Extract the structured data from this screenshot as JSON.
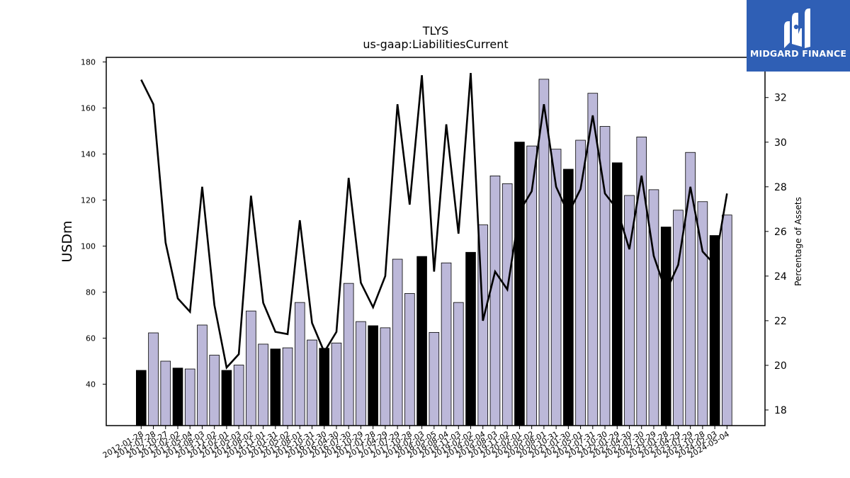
{
  "colors": {
    "bar_default": "#bcb8d9",
    "bar_highlight": "#000000",
    "line": "#000000",
    "logo_bg": "#2f5fb5"
  },
  "logo": {
    "text": "MIDGARD FINANCE",
    "icon": "midgard-logo-icon"
  },
  "chart_data": {
    "type": "bar",
    "title": "TLYS",
    "subtitle": "us-gaap:LiabilitiesCurrent",
    "ylabel": "USDm",
    "y2label": "Percentage of Assets",
    "ylim": [
      22,
      182
    ],
    "y2lim": [
      17.3,
      33.8
    ],
    "yticks": [
      40,
      60,
      80,
      100,
      120,
      140,
      160,
      180
    ],
    "y2ticks": [
      18,
      20,
      22,
      24,
      26,
      28,
      30,
      32
    ],
    "categories": [
      "2012-01-28",
      "2012-07-28",
      "2012-10-27",
      "2013-02-02",
      "2013-05-04",
      "2013-08-03",
      "2013-11-02",
      "2014-02-01",
      "2014-05-03",
      "2014-08-02",
      "2014-11-01",
      "2015-01-31",
      "2015-05-02",
      "2015-08-01",
      "2015-10-31",
      "2016-01-30",
      "2016-04-30",
      "2016-07-30",
      "2016-10-29",
      "2017-01-28",
      "2017-04-29",
      "2017-07-29",
      "2017-10-28",
      "2018-02-03",
      "2018-05-05",
      "2018-08-04",
      "2018-11-03",
      "2019-02-02",
      "2019-05-04",
      "2019-08-03",
      "2019-11-02",
      "2020-02-01",
      "2020-05-02",
      "2020-08-01",
      "2020-10-31",
      "2021-01-30",
      "2021-05-01",
      "2021-07-31",
      "2021-10-30",
      "2022-01-29",
      "2022-04-30",
      "2022-07-30",
      "2022-10-29",
      "2023-01-28",
      "2023-04-29",
      "2023-07-29",
      "2023-10-28",
      "2024-02-03",
      "2024-05-04"
    ],
    "tick_labels": [
      "2012-01-28",
      "2012-07-28",
      "2012-10-27",
      "2013-02-02",
      "2013-05-04",
      "2013-08-03",
      "2013-11-02",
      "2014-02-01",
      "2014-05-03",
      "2014-08-02",
      "2014-11-01",
      "2015-01-31",
      "2015-05-02",
      "2015-08-01",
      "2015-10-31",
      "2016-01-30",
      "2016-04-30",
      "2016-07-30",
      "2016-10-29",
      "2017-01-28",
      "2017-04-29",
      "2017-07-29",
      "2017-10-28",
      "2018-02-03",
      "2018-05-05",
      "2018-08-04",
      "2018-11-03",
      "2019-02-02",
      "2019-05-04",
      "2019-08-03",
      "2019-11-02",
      "2020-02-01",
      "2020-05-02",
      "2020-08-01",
      "2020-10-31",
      "2021-01-30",
      "2021-05-01",
      "2021-07-31",
      "2021-10-30",
      "2022-01-29",
      "2022-04-30",
      "2022-07-30",
      "2022-10-29",
      "2023-01-28",
      "2023-04-29",
      "2023-07-29",
      "2023-10-28",
      "2024-02-03",
      "2024-05-04"
    ],
    "values": [
      46.0,
      62.3,
      50.0,
      47.0,
      46.6,
      65.7,
      52.6,
      46.0,
      48.3,
      71.8,
      57.4,
      55.3,
      55.8,
      75.5,
      59.2,
      55.6,
      57.9,
      83.8,
      67.2,
      65.4,
      64.5,
      94.3,
      79.4,
      95.5,
      62.5,
      92.7,
      75.5,
      97.3,
      109.2,
      130.5,
      127.1,
      145.2,
      143.5,
      172.5,
      142.1,
      133.4,
      146.0,
      166.4,
      152.0,
      136.2,
      122.0,
      147.4,
      124.5,
      108.3,
      115.6,
      140.7,
      119.3,
      104.6,
      113.5
    ],
    "highlight": [
      true,
      false,
      false,
      true,
      false,
      false,
      false,
      true,
      false,
      false,
      false,
      true,
      false,
      false,
      false,
      true,
      false,
      false,
      false,
      true,
      false,
      false,
      false,
      true,
      false,
      false,
      false,
      true,
      false,
      false,
      false,
      true,
      false,
      false,
      false,
      true,
      false,
      false,
      false,
      true,
      false,
      false,
      false,
      true,
      false,
      false,
      false,
      true,
      false
    ],
    "line_series": {
      "name": "Percentage of Assets",
      "values": [
        32.8,
        31.7,
        25.5,
        23.0,
        22.4,
        28.0,
        22.7,
        19.9,
        20.5,
        27.6,
        22.8,
        21.5,
        21.4,
        26.5,
        21.9,
        20.6,
        21.5,
        28.4,
        23.7,
        22.6,
        24.0,
        31.7,
        27.2,
        33.0,
        24.2,
        30.8,
        25.9,
        33.1,
        22.0,
        24.2,
        23.4,
        26.9,
        27.8,
        31.7,
        28.0,
        26.8,
        27.9,
        31.2,
        27.7,
        27.0,
        25.2,
        28.5,
        24.9,
        23.3,
        24.5,
        28.0,
        25.1,
        24.5,
        27.7
      ]
    }
  }
}
